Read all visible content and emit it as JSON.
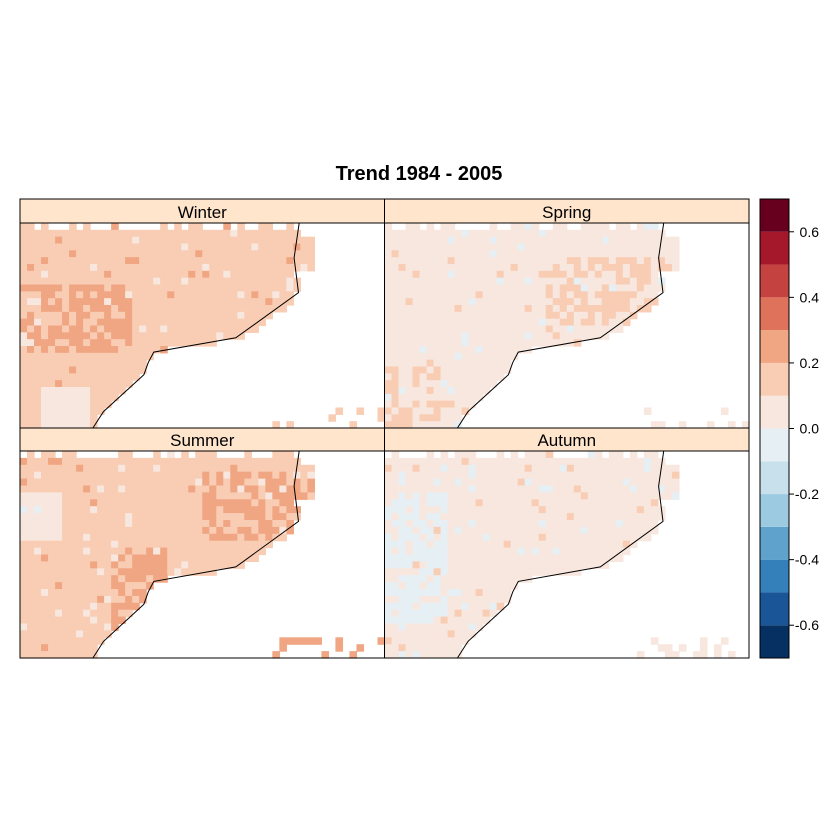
{
  "chart_data": {
    "type": "heatmap",
    "title": "Trend 1984 - 2005",
    "panels": [
      {
        "name": "Winter",
        "dominant_level": 0.15,
        "notes": "mostly 0.1-0.2 over land, 0.2-0.3 band in west"
      },
      {
        "name": "Spring",
        "dominant_level": 0.05,
        "notes": "mostly 0.0-0.1, 0.1-0.2 patch in north-east"
      },
      {
        "name": "Summer",
        "dominant_level": 0.15,
        "notes": "0.1-0.2 with 0.2-0.3 along coast and north-east"
      },
      {
        "name": "Autumn",
        "dominant_level": 0.05,
        "notes": "mostly 0.0-0.1, slight negative in west"
      }
    ],
    "colorkey": {
      "breaks": [
        -0.7,
        -0.6,
        -0.5,
        -0.4,
        -0.3,
        -0.2,
        -0.1,
        0.0,
        0.1,
        0.2,
        0.3,
        0.4,
        0.5,
        0.6,
        0.7
      ],
      "colors": [
        "#053061",
        "#1a5597",
        "#3380ba",
        "#5fa3cc",
        "#9ccae1",
        "#c8e0ec",
        "#e6eff4",
        "#f8e7de",
        "#f9ccb4",
        "#f0a683",
        "#de725b",
        "#c4423f",
        "#a5172a",
        "#67001f"
      ],
      "tick_labels": [
        "0.6",
        "0.4",
        "0.2",
        "0.0",
        "-0.2",
        "-0.4",
        "-0.6"
      ],
      "tick_values": [
        0.6,
        0.4,
        0.2,
        0.0,
        -0.2,
        -0.4,
        -0.6
      ]
    },
    "grid": false,
    "legend_placement": "right"
  }
}
